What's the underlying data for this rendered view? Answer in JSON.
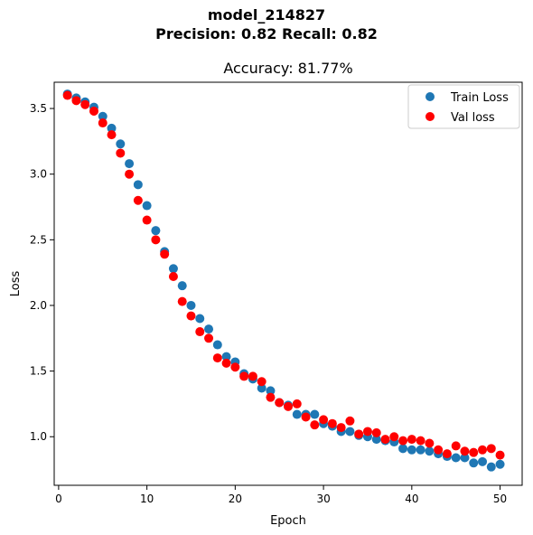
{
  "suptitle": {
    "line1": "model_214827",
    "line2": "Precision: 0.82 Recall: 0.82"
  },
  "chart_data": {
    "type": "scatter",
    "title": "Accuracy: 81.77%",
    "xlabel": "Epoch",
    "ylabel": "Loss",
    "xlim": [
      -0.5,
      52.5
    ],
    "ylim": [
      0.63,
      3.7
    ],
    "xticks": [
      0,
      10,
      20,
      30,
      40,
      50
    ],
    "yticks": [
      1.0,
      1.5,
      2.0,
      2.5,
      3.0,
      3.5
    ],
    "grid": false,
    "legend_position": "upper right",
    "series": [
      {
        "name": "Train Loss",
        "color": "#1f77b4",
        "x": [
          1,
          2,
          3,
          4,
          5,
          6,
          7,
          8,
          9,
          10,
          11,
          12,
          13,
          14,
          15,
          16,
          17,
          18,
          19,
          20,
          21,
          22,
          23,
          24,
          25,
          26,
          27,
          28,
          29,
          30,
          31,
          32,
          33,
          34,
          35,
          36,
          37,
          38,
          39,
          40,
          41,
          42,
          43,
          44,
          45,
          46,
          47,
          48,
          49,
          50
        ],
        "y": [
          3.61,
          3.58,
          3.55,
          3.51,
          3.44,
          3.35,
          3.23,
          3.08,
          2.92,
          2.76,
          2.57,
          2.41,
          2.28,
          2.15,
          2.0,
          1.9,
          1.82,
          1.7,
          1.61,
          1.57,
          1.48,
          1.44,
          1.37,
          1.35,
          1.26,
          1.24,
          1.17,
          1.17,
          1.17,
          1.1,
          1.08,
          1.04,
          1.04,
          1.01,
          1.0,
          0.98,
          0.97,
          0.96,
          0.91,
          0.9,
          0.9,
          0.89,
          0.87,
          0.85,
          0.84,
          0.84,
          0.8,
          0.81,
          0.77,
          0.79
        ]
      },
      {
        "name": "Val loss",
        "color": "#ff0000",
        "x": [
          1,
          2,
          3,
          4,
          5,
          6,
          7,
          8,
          9,
          10,
          11,
          12,
          13,
          14,
          15,
          16,
          17,
          18,
          19,
          20,
          21,
          22,
          23,
          24,
          25,
          26,
          27,
          28,
          29,
          30,
          31,
          32,
          33,
          34,
          35,
          36,
          37,
          38,
          39,
          40,
          41,
          42,
          43,
          44,
          45,
          46,
          47,
          48,
          49,
          50
        ],
        "y": [
          3.6,
          3.56,
          3.53,
          3.48,
          3.39,
          3.3,
          3.16,
          3.0,
          2.8,
          2.65,
          2.5,
          2.39,
          2.22,
          2.03,
          1.92,
          1.8,
          1.75,
          1.6,
          1.56,
          1.53,
          1.46,
          1.46,
          1.42,
          1.3,
          1.26,
          1.23,
          1.25,
          1.15,
          1.09,
          1.13,
          1.1,
          1.07,
          1.12,
          1.02,
          1.04,
          1.03,
          0.98,
          1.0,
          0.97,
          0.98,
          0.97,
          0.95,
          0.9,
          0.87,
          0.93,
          0.89,
          0.88,
          0.9,
          0.91,
          0.86
        ]
      }
    ]
  }
}
